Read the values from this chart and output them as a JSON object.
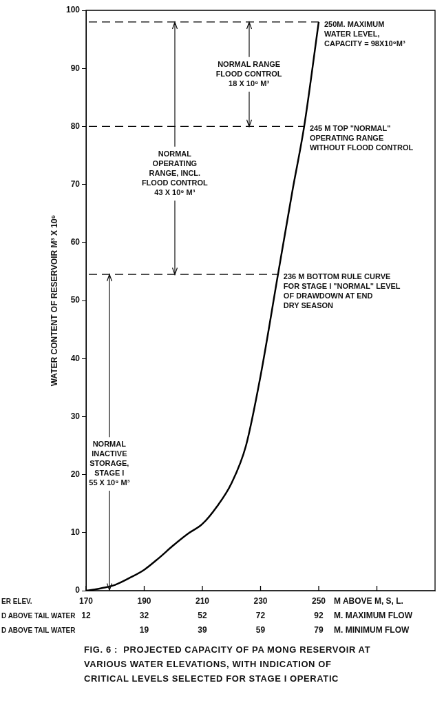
{
  "chart_data": {
    "type": "line",
    "title": "FIG. 6 :  PROJECTED CAPACITY OF PA MONG RESERVOIR AT\nVARIOUS WATER ELEVATIONS, WITH INDICATION OF\nCRITICAL LEVELS SELECTED FOR STAGE I OPERATIC",
    "xlabel": "M ABOVE M, S, L.",
    "x2label": "M. MAXIMUM FLOW",
    "ylabel": "WATER CONTENT OF RESERVOIR M³ X 10⁹",
    "x": [
      170,
      173,
      176,
      180,
      185,
      190,
      195,
      200,
      205,
      210,
      215,
      220,
      225,
      230,
      236,
      241,
      245,
      250
    ],
    "series": [
      {
        "color": "#000000",
        "values": [
          0,
          0.2,
          0.5,
          1.0,
          2.2,
          3.6,
          5.6,
          7.8,
          9.8,
          11.5,
          14.5,
          18.5,
          25,
          37,
          54.5,
          69,
          80,
          98
        ]
      }
    ],
    "xlim": [
      170,
      290
    ],
    "xticks": [
      170,
      190,
      210,
      230,
      250,
      {
        "value": 270,
        "label": null
      }
    ],
    "x2lim": [
      12,
      132
    ],
    "x2ticks": [
      12,
      32,
      52,
      72,
      92
    ],
    "ylim": [
      0,
      100
    ],
    "yticks": [
      0,
      10,
      20,
      30,
      40,
      50,
      60,
      70,
      80,
      90,
      100
    ],
    "ref_lines": [
      {
        "axis": "y",
        "value": 98,
        "label": "250M. MAXIMUM\nWATER LEVEL,\nCAPACITY = 98X10⁹M³",
        "color": "#000000",
        "line_style": "dashed"
      },
      {
        "axis": "y",
        "value": 80,
        "label": "245 M TOP \"NORMAL\"\nOPERATING RANGE\nWITHOUT FLOOD CONTROL",
        "color": "#000000",
        "line_style": "dashed"
      },
      {
        "axis": "y",
        "value": 54.5,
        "label": "236 M BOTTOM RULE CURVE\nFOR STAGE I \"NORMAL\" LEVEL\nOF DRAWDOWN AT END\nDRY SEASON",
        "color": "#000000",
        "line_style": "dashed"
      }
    ],
    "annotations": [
      "ER ELEV.\nD ABOVE TAIL WATER\nD ABOVE TAIL WATER",
      "19 39 59 79",
      "M. MINIMUM FLOW",
      {
        "text": "NORMAL RANGE\nFLOOD CONTROL\n18 X 10⁹ M³",
        "x": 226,
        "y": 98
      },
      {
        "text": "NORMAL\nOPERATING\nRANGE, INCL.\nFLOOD CONTROL\n43 X 10⁹ M³",
        "x": 200.5,
        "y": 98
      },
      {
        "text": "NORMAL\nINACTIVE\nSTORAGE,\nSTAGE I\n55 X 10⁹ M³",
        "x": 178,
        "y": 54.5
      }
    ],
    "marker": "none",
    "line_style": "solid"
  }
}
